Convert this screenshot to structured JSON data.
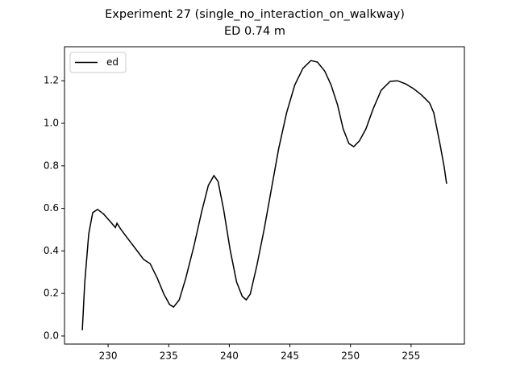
{
  "chart_data": {
    "type": "line",
    "title": "Experiment 27 (single_no_interaction_on_walkway)",
    "subtitle": "ED 0.74 m",
    "x": [
      227.87,
      228.07,
      228.4,
      228.73,
      229.13,
      229.6,
      230.07,
      230.6,
      230.73,
      231.07,
      231.73,
      232.4,
      232.93,
      233.47,
      234.07,
      234.6,
      235.07,
      235.4,
      235.87,
      236.4,
      237.07,
      237.73,
      238.27,
      238.73,
      239.07,
      239.53,
      240.07,
      240.6,
      241.07,
      241.4,
      241.73,
      242.27,
      242.87,
      243.47,
      244.07,
      244.73,
      245.4,
      246.07,
      246.73,
      247.27,
      247.87,
      248.4,
      248.93,
      249.4,
      249.87,
      250.27,
      250.73,
      251.27,
      251.87,
      252.53,
      253.27,
      253.87,
      254.53,
      255.2,
      255.87,
      256.53,
      256.87,
      257.4,
      257.73,
      257.93
    ],
    "series": [
      {
        "name": "ed",
        "color": "#000000",
        "values": [
          0.027,
          0.25,
          0.48,
          0.58,
          0.595,
          0.575,
          0.545,
          0.51,
          0.53,
          0.5,
          0.45,
          0.4,
          0.36,
          0.34,
          0.27,
          0.197,
          0.148,
          0.136,
          0.17,
          0.27,
          0.42,
          0.587,
          0.708,
          0.754,
          0.727,
          0.595,
          0.405,
          0.254,
          0.186,
          0.17,
          0.197,
          0.33,
          0.5,
          0.69,
          0.88,
          1.05,
          1.18,
          1.258,
          1.295,
          1.288,
          1.246,
          1.18,
          1.087,
          0.973,
          0.905,
          0.89,
          0.917,
          0.973,
          1.068,
          1.155,
          1.197,
          1.2,
          1.186,
          1.163,
          1.133,
          1.095,
          1.05,
          0.898,
          0.795,
          0.716
        ]
      }
    ],
    "xlim": [
      226.4,
      259.4
    ],
    "xticks": [
      230,
      235,
      240,
      245,
      250,
      255
    ],
    "ylim": [
      -0.038,
      1.36
    ],
    "yticks": [
      {
        "value": 0,
        "label": "0.0"
      },
      0.2,
      0.4,
      0.6,
      0.8,
      {
        "value": 1,
        "label": "1.0"
      },
      1.2
    ],
    "legend": "upper left"
  }
}
